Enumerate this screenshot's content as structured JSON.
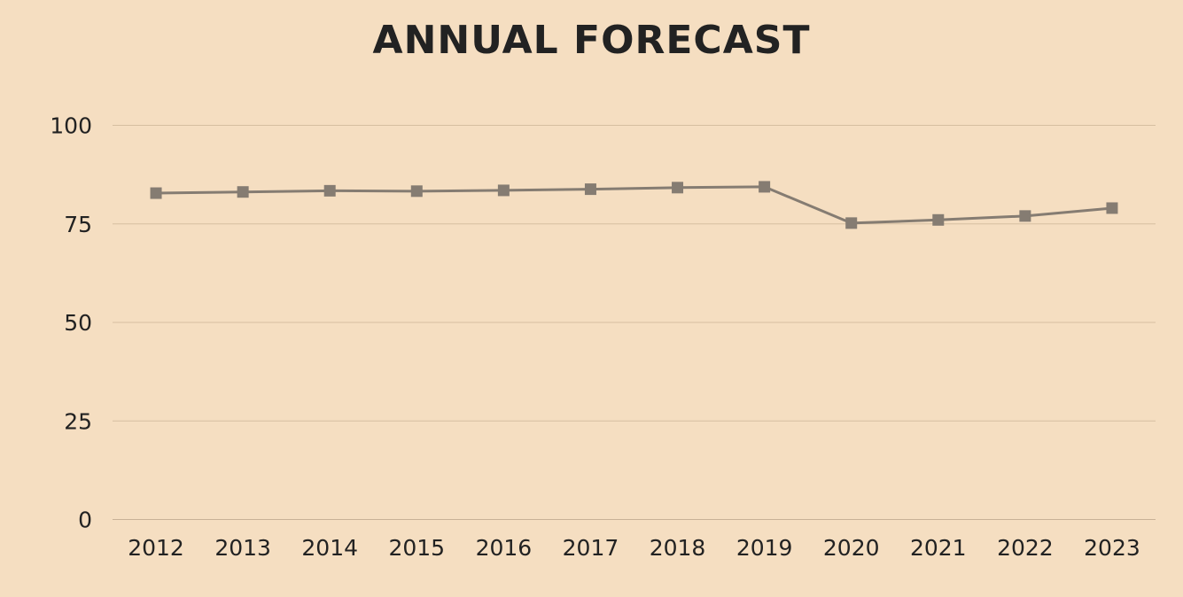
{
  "chart_data": {
    "type": "line",
    "title": "ANNUAL FORECAST",
    "xlabel": "",
    "ylabel": "",
    "categories": [
      "2012",
      "2013",
      "2014",
      "2015",
      "2016",
      "2017",
      "2018",
      "2019",
      "2020",
      "2021",
      "2022",
      "2023"
    ],
    "series": [
      {
        "values": [
          82.8,
          83.1,
          83.4,
          83.3,
          83.5,
          83.8,
          84.2,
          84.4,
          75.2,
          76.0,
          77.0,
          79.0
        ],
        "color": "#857c72"
      }
    ],
    "ylim": [
      0,
      100
    ],
    "yticks": [
      "0",
      "25",
      "50",
      "75",
      "100"
    ],
    "grid": true,
    "legend": "none",
    "marker": "square",
    "colors": {
      "background": "#f5dec1",
      "grid": "#d6bfa1",
      "text": "#222222"
    }
  }
}
